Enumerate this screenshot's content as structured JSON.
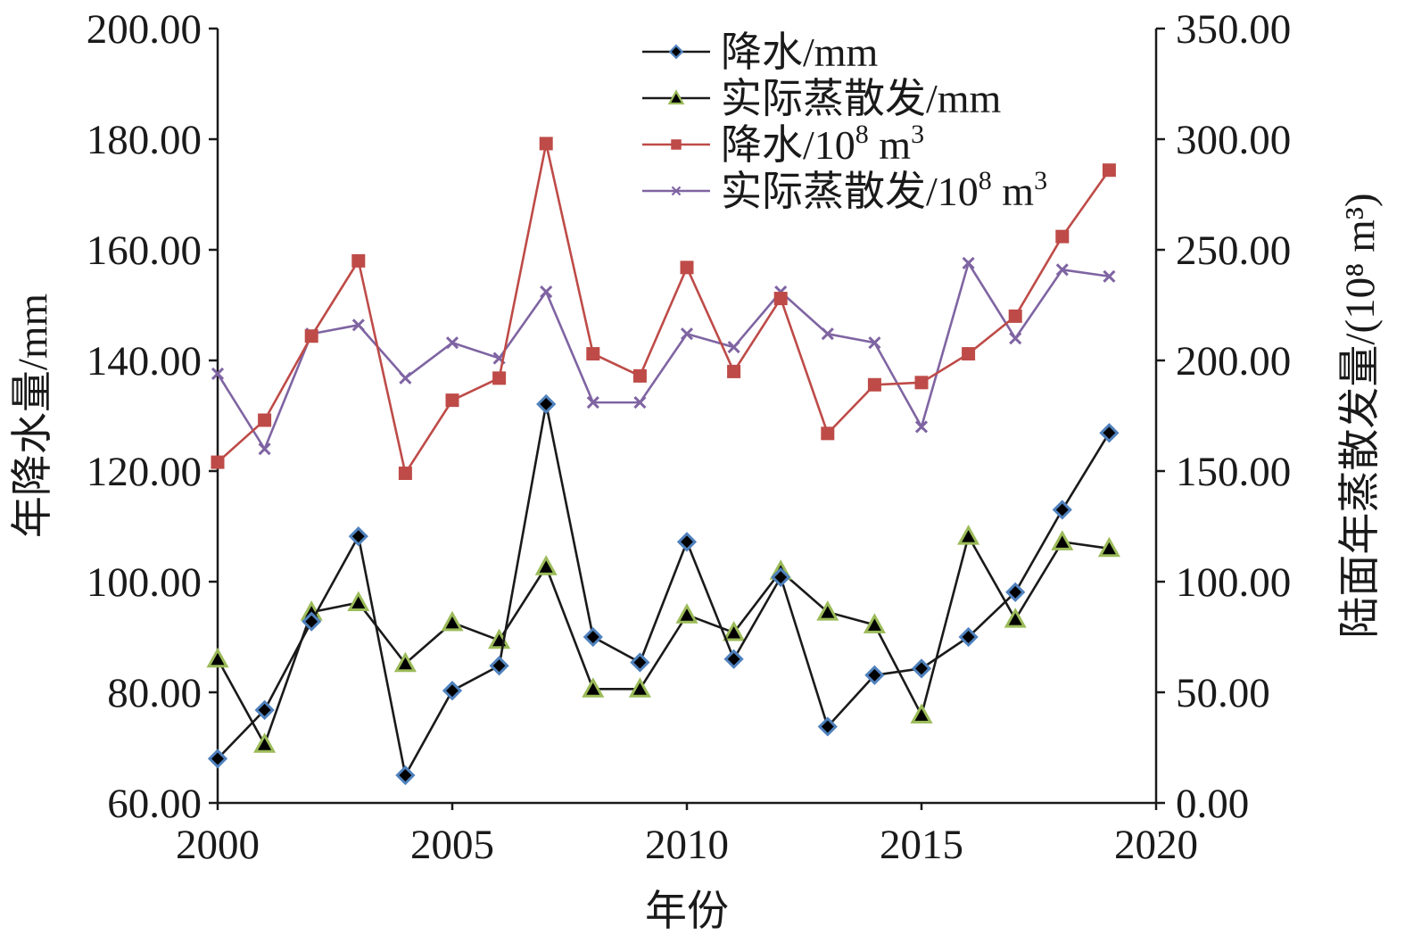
{
  "chart_data": {
    "type": "line",
    "title": "",
    "xlabel": "年份",
    "ylabel_left": "年降水量/mm",
    "ylabel_right": "陆面年蒸散发量/(10⁸ m³)",
    "x_ticks": [
      "2000",
      "2005",
      "2010",
      "2015",
      "2020"
    ],
    "y_left_ticks": [
      "60.00",
      "80.00",
      "100.00",
      "120.00",
      "140.00",
      "160.00",
      "180.00",
      "200.00"
    ],
    "y_right_ticks": [
      "0.00",
      "50.00",
      "100.00",
      "150.00",
      "200.00",
      "250.00",
      "300.00",
      "350.00"
    ],
    "xlim": [
      2000,
      2020
    ],
    "ylim_left": [
      60,
      200
    ],
    "ylim_right": [
      0,
      350
    ],
    "grid": false,
    "legend_position": "top",
    "x": [
      2000,
      2001,
      2002,
      2003,
      2004,
      2005,
      2006,
      2007,
      2008,
      2009,
      2010,
      2011,
      2012,
      2013,
      2014,
      2015,
      2016,
      2017,
      2018,
      2019
    ],
    "series": [
      {
        "name": "降水/mm",
        "legend_base": "降水/mm",
        "legend_sup": "",
        "axis": "left",
        "line_color": "#1a1a1a",
        "marker": "diamond",
        "marker_fill": "#000000",
        "marker_stroke": "#4f81bd",
        "values": [
          68.0,
          76.8,
          92.8,
          108.2,
          65.0,
          80.3,
          84.8,
          132.1,
          90.0,
          85.4,
          107.2,
          86.0,
          100.8,
          73.8,
          83.1,
          84.3,
          90.0,
          98.1,
          113.0,
          126.9
        ]
      },
      {
        "name": "实际蒸散发/mm",
        "legend_base": "实际蒸散发/mm",
        "legend_sup": "",
        "axis": "left",
        "line_color": "#1a1a1a",
        "marker": "triangle",
        "marker_fill": "#000000",
        "marker_stroke": "#9bbb59",
        "values": [
          86.0,
          70.6,
          94.5,
          96.2,
          85.2,
          92.6,
          89.4,
          102.7,
          80.6,
          80.6,
          94.0,
          90.8,
          101.9,
          94.5,
          92.2,
          75.9,
          108.2,
          93.2,
          107.2,
          106.0
        ]
      },
      {
        "name": "降水/10⁸ m³",
        "legend_base": "降水/10",
        "legend_sup": "8",
        "legend_mid": " m",
        "legend_sup2": "3",
        "axis": "right",
        "line_color": "#be4b48",
        "marker": "square",
        "marker_fill": "#be4b48",
        "marker_stroke": "#be4b48",
        "values": [
          154.0,
          173.0,
          211.0,
          245.0,
          149.0,
          182.0,
          192.0,
          298.0,
          203.0,
          193.0,
          242.0,
          195.0,
          228.0,
          167.0,
          189.0,
          190.0,
          203.0,
          220.0,
          256.0,
          286.0
        ]
      },
      {
        "name": "实际蒸散发/10⁸ m³",
        "legend_base": "实际蒸散发/10",
        "legend_sup": "8",
        "legend_mid": " m",
        "legend_sup2": "3",
        "axis": "right",
        "line_color": "#7f64a2",
        "marker": "x",
        "marker_fill": "#7f64a2",
        "marker_stroke": "#7f64a2",
        "values": [
          194.0,
          160.0,
          212.0,
          216.0,
          192.0,
          208.0,
          201.0,
          231.0,
          181.0,
          181.0,
          212.0,
          206.0,
          231.0,
          212.0,
          208.0,
          170.0,
          244.0,
          210.0,
          241.0,
          238.0
        ]
      }
    ]
  }
}
